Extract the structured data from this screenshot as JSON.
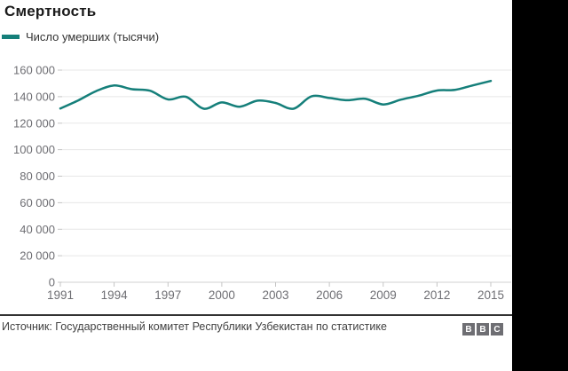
{
  "header": {
    "title": "Смертность"
  },
  "legend": {
    "label": "Число умерших (тысячи)"
  },
  "colors": {
    "line": "#157f7a",
    "grid": "#e7e7e7",
    "zero_axis": "#d0d0d0",
    "tick": "#c4c4c4",
    "axis_text": "#6e6e73",
    "title_text": "#1a1a1a",
    "source_text": "#404040",
    "logo_block": "#6e6e73",
    "right_bar": "#000000"
  },
  "chart_data": {
    "type": "line",
    "title": "Смертность",
    "xlabel": "",
    "ylabel": "",
    "grid": true,
    "legend_position": "top-left",
    "xlim": [
      1991,
      2015
    ],
    "ylim": [
      0,
      160000
    ],
    "x_ticks": [
      1991,
      1994,
      1997,
      2000,
      2003,
      2006,
      2009,
      2012,
      2015
    ],
    "y_ticks": [
      0,
      20000,
      40000,
      60000,
      80000,
      100000,
      120000,
      140000,
      160000
    ],
    "x": [
      1991,
      1992,
      1993,
      1994,
      1995,
      1996,
      1997,
      1998,
      1999,
      2000,
      2001,
      2002,
      2003,
      2004,
      2005,
      2006,
      2007,
      2008,
      2009,
      2010,
      2011,
      2012,
      2013,
      2014,
      2015
    ],
    "series": [
      {
        "name": "Число умерших (тысячи)",
        "values": [
          131100,
          137200,
          144200,
          148400,
          145600,
          144500,
          137900,
          139900,
          130900,
          135600,
          132400,
          137000,
          135200,
          130900,
          140200,
          139000,
          137300,
          138400,
          134100,
          137800,
          140800,
          144600,
          145100,
          148500,
          151800
        ]
      }
    ]
  },
  "footer": {
    "source": "Источник: Государственный комитет Республики Узбекистан по статистике",
    "logo_letters": [
      "B",
      "B",
      "C"
    ]
  }
}
